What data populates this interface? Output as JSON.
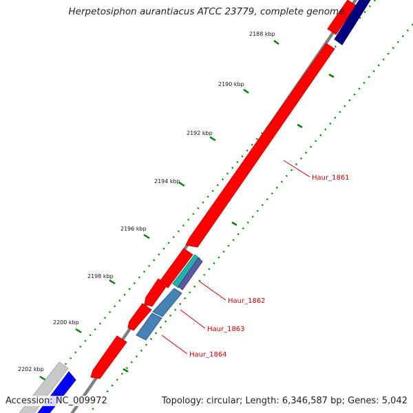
{
  "title": "Herpetosiphon aurantiacus ATCC 23779, complete genome",
  "footer": {
    "accession": "Accession: NC_009972",
    "summary": "Topology: circular; Length: 6,346,587 bp; Genes: 5,042"
  },
  "ticks": [
    "2188 kbp",
    "2190 kbp",
    "2192 kbp",
    "2194 kbp",
    "2196 kbp",
    "2198 kbp",
    "2200 kbp",
    "2202 kbp"
  ],
  "genes": [
    "Haur_1861",
    "Haur_1862",
    "Haur_1863",
    "Haur_1864"
  ],
  "colors": {
    "forward_cds": "#ff0000",
    "reverse_navy": "#000080",
    "reverse_blue": "#0000ff",
    "steel_blue": "#4682b4",
    "cyan": "#20b2aa",
    "backbone": "#808080",
    "tick": "#008000",
    "label": "#cc0000"
  }
}
